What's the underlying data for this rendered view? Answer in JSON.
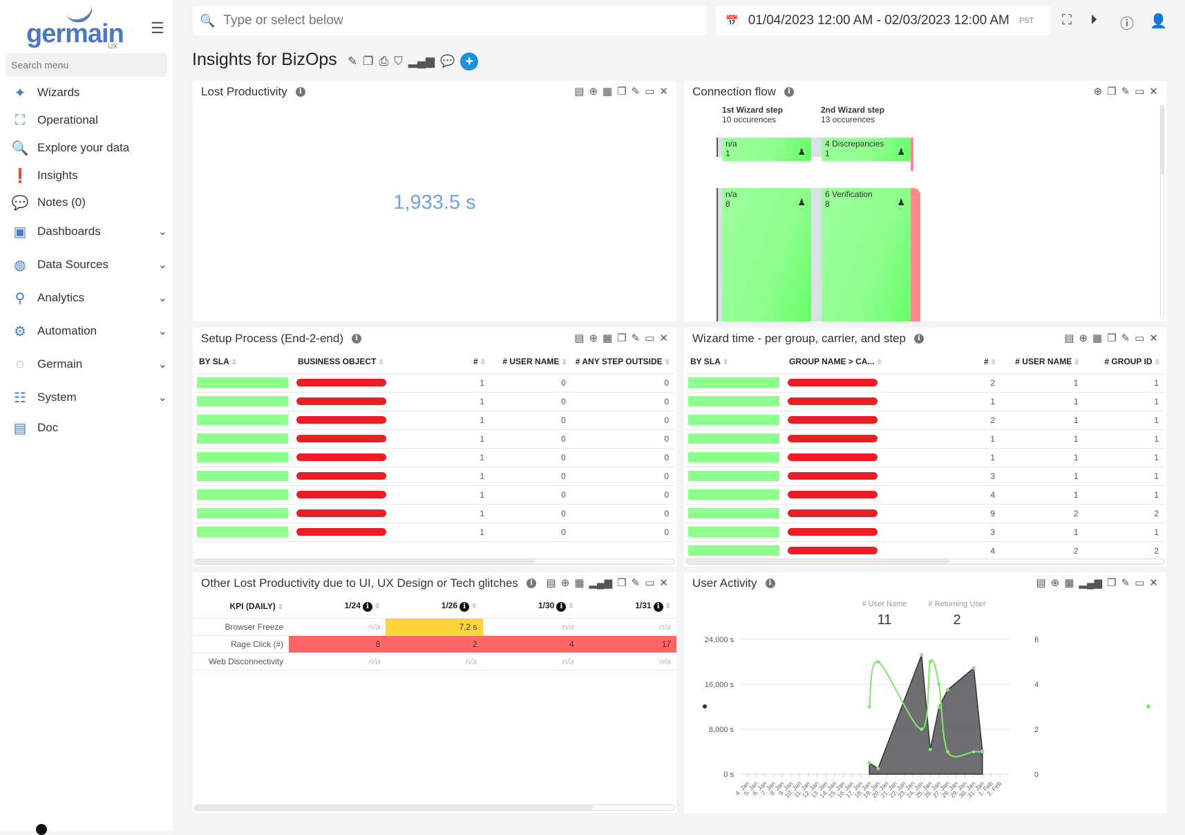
{
  "app": {
    "logo": "germain",
    "logo_sub": "UX"
  },
  "sidebar": {
    "search_placeholder": "Search menu",
    "items": [
      {
        "label": "Wizards",
        "icon": "magic-wand-icon"
      },
      {
        "label": "Operational",
        "icon": "sitemap-icon"
      },
      {
        "label": "Explore your data",
        "icon": "search-icon"
      },
      {
        "label": "Insights",
        "icon": "exclamation-icon"
      },
      {
        "label": "Notes (0)",
        "icon": "comment-icon"
      },
      {
        "label": "Dashboards",
        "icon": "monitor-icon",
        "expandable": true
      },
      {
        "label": "Data Sources",
        "icon": "database-icon",
        "expandable": true
      },
      {
        "label": "Analytics",
        "icon": "analytics-icon",
        "expandable": true
      },
      {
        "label": "Automation",
        "icon": "gear-icon",
        "expandable": true
      },
      {
        "label": "Germain",
        "icon": "circle-icon",
        "expandable": true
      },
      {
        "label": "System",
        "icon": "sliders-icon",
        "expandable": true
      },
      {
        "label": "Doc",
        "icon": "document-icon"
      }
    ]
  },
  "header": {
    "search_placeholder": "Type or select below",
    "date_range": "01/04/2023 12:00 AM - 02/03/2023 12:00 AM",
    "timezone": "PST"
  },
  "page": {
    "title": "Insights for BizOps"
  },
  "colors": {
    "accent": "#1e90d8",
    "sla_green": "#8cff8c",
    "warn": "#ffd43b",
    "bad": "#ff6666",
    "metric_blue": "#6fa4e0"
  },
  "panels": {
    "lost_productivity": {
      "title": "Lost Productivity",
      "value": "1,933.5 s"
    },
    "connection_flow": {
      "title": "Connection flow",
      "steps": [
        {
          "title": "1st Wizard step",
          "sub": "10 occurences"
        },
        {
          "title": "2nd Wizard step",
          "sub": "13 occurences"
        }
      ],
      "nodes": [
        {
          "label": "n/a",
          "count": "1"
        },
        {
          "label": "4 Discrepancies",
          "count": "1"
        },
        {
          "label": "n/a",
          "count": "8"
        },
        {
          "label": "6 Verification",
          "count": "8"
        }
      ]
    },
    "setup_process": {
      "title": "Setup Process (End-2-end)",
      "columns": [
        "BY SLA",
        "BUSINESS OBJECT",
        "#",
        "# USER NAME",
        "# ANY STEP OUTSIDE"
      ],
      "rows": [
        [
          "1",
          "0",
          "0"
        ],
        [
          "1",
          "0",
          "0"
        ],
        [
          "1",
          "0",
          "0"
        ],
        [
          "1",
          "0",
          "0"
        ],
        [
          "1",
          "0",
          "0"
        ],
        [
          "1",
          "0",
          "0"
        ],
        [
          "1",
          "0",
          "0"
        ],
        [
          "1",
          "0",
          "0"
        ],
        [
          "1",
          "0",
          "0"
        ]
      ]
    },
    "wizard_time": {
      "title": "Wizard time - per group, carrier, and step",
      "columns": [
        "BY SLA",
        "GROUP NAME > CA...",
        "#",
        "# USER NAME",
        "# GROUP ID"
      ],
      "rows": [
        [
          "2",
          "1",
          "1"
        ],
        [
          "1",
          "1",
          "1"
        ],
        [
          "2",
          "1",
          "1"
        ],
        [
          "1",
          "1",
          "1"
        ],
        [
          "1",
          "1",
          "1"
        ],
        [
          "3",
          "1",
          "1"
        ],
        [
          "4",
          "1",
          "1"
        ],
        [
          "9",
          "2",
          "2"
        ],
        [
          "3",
          "1",
          "1"
        ],
        [
          "4",
          "2",
          "2"
        ]
      ]
    },
    "other_lost": {
      "title": "Other Lost Productivity due to UI, UX Design or Tech glitches",
      "columns": [
        "KPI (DAILY)",
        "1/24",
        "1/26",
        "1/30",
        "1/31"
      ],
      "rows": [
        {
          "kpi": "Browser Freeze",
          "values": [
            "n/a",
            "7.2 s",
            "n/a",
            "n/a"
          ]
        },
        {
          "kpi": "Rage Click (#)",
          "values": [
            "8",
            "2",
            "4",
            "17"
          ]
        },
        {
          "kpi": "Web Disconnectivity",
          "values": [
            "n/a",
            "n/a",
            "n/a",
            "n/a"
          ]
        }
      ]
    },
    "user_activity": {
      "title": "User Activity",
      "kpis": [
        {
          "label": "# User Name",
          "value": "11"
        },
        {
          "label": "# Returning User",
          "value": "2"
        }
      ]
    }
  },
  "chart_data": {
    "type": "area+line",
    "x": [
      "4. Jan",
      "5. Jan",
      "6. Jan",
      "7. Jan",
      "8. Jan",
      "9. Jan",
      "10. Jan",
      "11. Jan",
      "12. Jan",
      "13. Jan",
      "14. Jan",
      "15. Jan",
      "16. Jan",
      "17. Jan",
      "18. Jan",
      "19. Jan",
      "20. Jan",
      "21. Jan",
      "22. Jan",
      "23. Jan",
      "24. Jan",
      "25. Jan",
      "26. Jan",
      "27. Jan",
      "28. Jan",
      "29. Jan",
      "30. Jan",
      "31. Jan",
      "1. Feb",
      "2. Feb"
    ],
    "y_left": {
      "ticks": [
        "0 s",
        "8,000 s",
        "16,000 s",
        "24,000 s"
      ],
      "range": [
        0,
        24000
      ]
    },
    "y_right": {
      "ticks": [
        "0",
        "2",
        "4",
        "6"
      ],
      "range": [
        0,
        6
      ]
    },
    "series": [
      {
        "type": "area",
        "axis": "left",
        "color": "#555559",
        "points": [
          [
            "18. Jan",
            2000
          ],
          [
            "19. Jan",
            1000
          ],
          [
            "24. Jan",
            21200
          ],
          [
            "25. Jan",
            4400
          ],
          [
            "26. Jan",
            11900
          ],
          [
            "27. Jan",
            15000
          ],
          [
            "30. Jan",
            18900
          ],
          [
            "31. Jan",
            4100
          ]
        ]
      },
      {
        "type": "spline",
        "axis": "right",
        "color": "#7ee86e",
        "points": [
          [
            "18. Jan",
            3
          ],
          [
            "19. Jan",
            5
          ],
          [
            "24. Jan",
            2
          ],
          [
            "25. Jan",
            5
          ],
          [
            "26. Jan",
            4
          ],
          [
            "27. Jan",
            1
          ],
          [
            "30. Jan",
            1
          ],
          [
            "31. Jan",
            1
          ]
        ]
      }
    ],
    "grid": true
  }
}
